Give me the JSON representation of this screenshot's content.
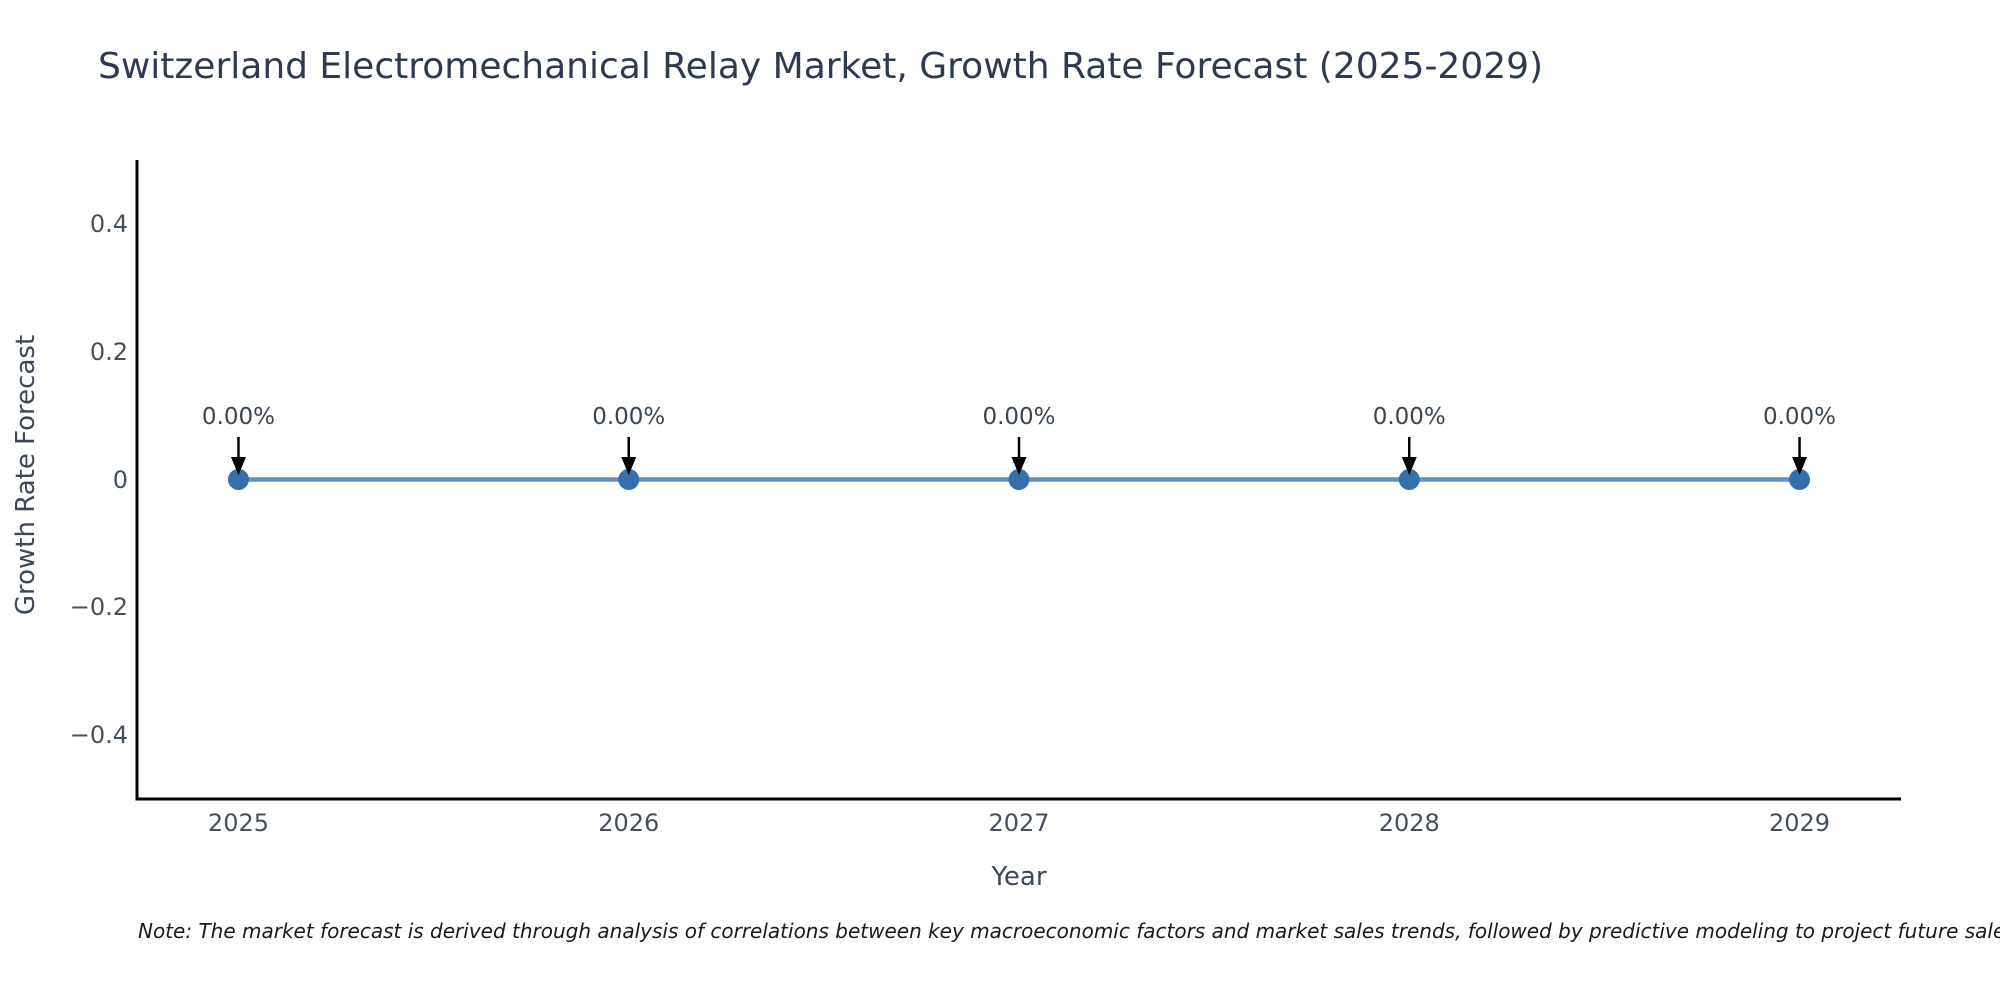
{
  "title": "Switzerland Electromechanical Relay Market, Growth Rate Forecast (2025-2029)",
  "note": "Note: The market forecast is derived through analysis of correlations between key macroeconomic factors and market sales trends, followed by predictive modeling to project future sales performance.",
  "chart_data": {
    "type": "line",
    "x": [
      2025,
      2026,
      2027,
      2028,
      2029
    ],
    "values": [
      0,
      0,
      0,
      0,
      0
    ],
    "point_labels": [
      "0.00%",
      "0.00%",
      "0.00%",
      "0.00%",
      "0.00%"
    ],
    "title": "Switzerland Electromechanical Relay Market, Growth Rate Forecast (2025-2029)",
    "xlabel": "Year",
    "ylabel": "Growth Rate Forecast",
    "xlim": [
      2024.74,
      2029.26
    ],
    "ylim": [
      -0.5,
      0.5
    ],
    "yticks": [
      0.4,
      0.2,
      0,
      -0.2,
      -0.4
    ],
    "ytick_labels": [
      "0.4",
      "0.2",
      "0",
      "−0.2",
      "−0.4"
    ],
    "xticks": [
      2025,
      2026,
      2027,
      2028,
      2029
    ],
    "xtick_labels": [
      "2025",
      "2026",
      "2027",
      "2028",
      "2029"
    ],
    "grid": false,
    "legend": false,
    "annotation_arrows": true,
    "colors": {
      "line": "#5e90c5",
      "marker": "#356fab",
      "axis": "#000000",
      "arrow": "#000000",
      "tick_text": "#45505e",
      "title_text": "#2e3a52"
    }
  }
}
